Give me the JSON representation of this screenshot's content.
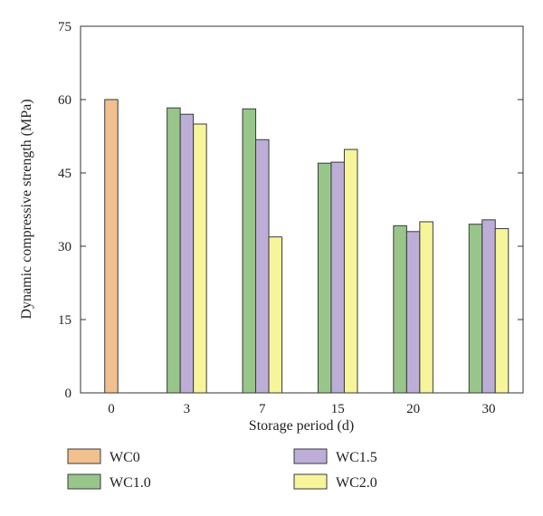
{
  "chart_data": {
    "type": "bar",
    "categories": [
      "0",
      "3",
      "7",
      "15",
      "20",
      "30"
    ],
    "series": [
      {
        "name": "WC0",
        "color": "#f0c08e",
        "values": [
          60,
          null,
          null,
          null,
          null,
          null
        ]
      },
      {
        "name": "WC1.0",
        "color": "#98c68a",
        "values": [
          null,
          58.3,
          58.1,
          47.0,
          34.2,
          34.5
        ]
      },
      {
        "name": "WC1.5",
        "color": "#bcaed6",
        "values": [
          null,
          57.0,
          51.8,
          47.2,
          33.0,
          35.4
        ]
      },
      {
        "name": "WC2.0",
        "color": "#f7f59a",
        "values": [
          null,
          55.0,
          31.9,
          49.8,
          35.0,
          33.6
        ]
      }
    ],
    "xlabel": "Storage period (d)",
    "ylabel": "Dynamic compressive strength (MPa)",
    "ylim": [
      0,
      75
    ],
    "yticks": [
      0,
      15,
      30,
      45,
      60,
      75
    ],
    "grid": false,
    "legend_position": "bottom"
  }
}
